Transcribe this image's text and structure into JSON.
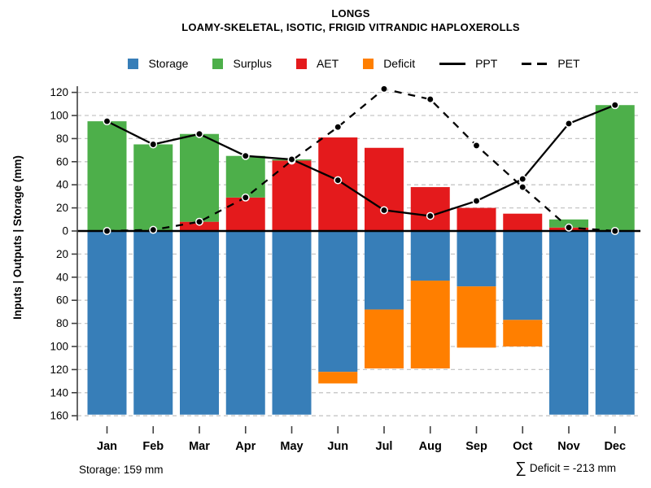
{
  "title": {
    "line1": "LONGS",
    "line2": "LOAMY-SKELETAL, ISOTIC, FRIGID VITRANDIC HAPLOXEROLLS"
  },
  "legend": {
    "items": [
      {
        "label": "Storage",
        "swatch": "square",
        "color": "#377eb8"
      },
      {
        "label": "Surplus",
        "swatch": "square",
        "color": "#4daf4a"
      },
      {
        "label": "AET",
        "swatch": "square",
        "color": "#e41a1c"
      },
      {
        "label": "Deficit",
        "swatch": "square",
        "color": "#ff7f00"
      },
      {
        "label": "PPT",
        "swatch": "solid-line",
        "color": "#000000"
      },
      {
        "label": "PET",
        "swatch": "dashed-line",
        "color": "#000000"
      }
    ]
  },
  "footer": {
    "storage_note": "Storage: 159 mm",
    "sigma": "∑",
    "deficit_note": "Deficit = -213 mm"
  },
  "chart_data": {
    "type": "bar",
    "subtype": "monthly water balance: stacked bars above zero (AET + Surplus = PPT), bars below zero (Storage, with Deficit stacked beneath), overlaid PPT (solid) and PET (dashed) lines with point markers",
    "title": "LONGS",
    "subtitle": "LOAMY-SKELETAL, ISOTIC, FRIGID VITRANDIC HAPLOXEROLLS",
    "xlabel": "",
    "ylabel": "Inputs | Outputs | Storage    (mm)",
    "categories": [
      "Jan",
      "Feb",
      "Mar",
      "Apr",
      "May",
      "Jun",
      "Jul",
      "Aug",
      "Sep",
      "Oct",
      "Nov",
      "Dec"
    ],
    "series": [
      {
        "name": "Surplus",
        "type": "bar-above-zero-top",
        "color": "#4daf4a",
        "values": [
          95,
          75,
          76,
          36,
          1,
          0,
          0,
          0,
          0,
          0,
          7,
          109
        ]
      },
      {
        "name": "AET",
        "type": "bar-above-zero-bottom",
        "color": "#e41a1c",
        "values": [
          0,
          0,
          8,
          29,
          61,
          81,
          72,
          38,
          20,
          15,
          3,
          0
        ]
      },
      {
        "name": "Storage",
        "type": "bar-below-zero",
        "color": "#377eb8",
        "values": [
          159,
          159,
          159,
          159,
          159,
          122,
          68,
          43,
          48,
          77,
          159,
          159
        ]
      },
      {
        "name": "Deficit",
        "type": "bar-below-storage",
        "color": "#ff7f00",
        "values": [
          0,
          0,
          0,
          0,
          0,
          10,
          51,
          76,
          53,
          23,
          0,
          0
        ]
      },
      {
        "name": "PPT",
        "type": "line-solid",
        "color": "#000000",
        "values": [
          95,
          75,
          84,
          65,
          62,
          44,
          18,
          13,
          26,
          45,
          93,
          109
        ]
      },
      {
        "name": "PET",
        "type": "line-dashed",
        "color": "#000000",
        "values": [
          0,
          1,
          8,
          29,
          61,
          90,
          123,
          114,
          74,
          38,
          3,
          0
        ]
      }
    ],
    "yticks_input": [
      0,
      20,
      40,
      60,
      80,
      100,
      120
    ],
    "yticks_storage": [
      20,
      40,
      60,
      80,
      100,
      120,
      140,
      160
    ],
    "ylim_above": [
      0,
      133
    ],
    "ylim_below": [
      0,
      160
    ],
    "grid": "dashed light-gray horizontal lines every 20 mm; heavy solid black line at 0",
    "legend_position": "top",
    "annotations": {
      "storage_capacity": "Storage: 159 mm",
      "sum_deficit": "∑ Deficit = -213 mm"
    }
  }
}
